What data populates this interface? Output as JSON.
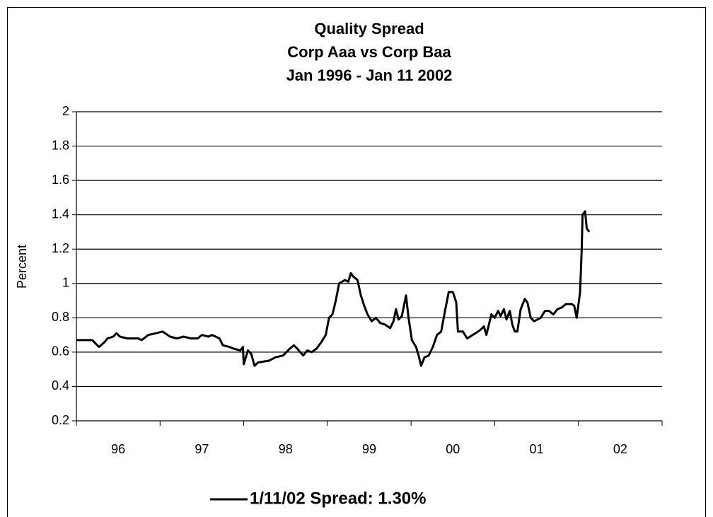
{
  "chart_data": {
    "type": "line",
    "title": [
      "Quality Spread",
      "Corp Aaa vs Corp Baa",
      "Jan 1996 - Jan 11 2002"
    ],
    "y_label": "Percent",
    "categories": [
      "96",
      "97",
      "98",
      "99",
      "00",
      "01",
      "02"
    ],
    "xlim": [
      1996,
      2003
    ],
    "ylim": [
      0.2,
      2
    ],
    "yticks": [
      0.2,
      0.4,
      0.6,
      0.8,
      1,
      1.2,
      1.4,
      1.6,
      1.8,
      2
    ],
    "grid": true,
    "legend": "bottom",
    "legend_text_color": "#1c1c8c",
    "series": [
      {
        "name": "1/11/02 Spread: 1.30%",
        "color": "#000000",
        "x": [
          1996.0,
          1996.19,
          1996.23,
          1996.27,
          1996.34,
          1996.37,
          1996.44,
          1996.48,
          1996.52,
          1996.61,
          1996.74,
          1996.78,
          1996.86,
          1996.95,
          1997.03,
          1997.12,
          1997.2,
          1997.28,
          1997.37,
          1997.45,
          1997.5,
          1997.58,
          1997.62,
          1997.71,
          1997.75,
          1997.83,
          1997.88,
          1997.96,
          1997.99,
          1998.0,
          1998.05,
          1998.09,
          1998.13,
          1998.17,
          1998.3,
          1998.38,
          1998.47,
          1998.55,
          1998.6,
          1998.64,
          1998.71,
          1998.76,
          1998.81,
          1998.87,
          1998.93,
          1998.98,
          1999.02,
          1999.06,
          1999.1,
          1999.14,
          1999.21,
          1999.25,
          1999.28,
          1999.31,
          1999.36,
          1999.4,
          1999.44,
          1999.48,
          1999.53,
          1999.58,
          1999.63,
          1999.69,
          1999.75,
          1999.79,
          1999.82,
          1999.85,
          1999.89,
          1999.94,
          1999.97,
          2000.01,
          2000.06,
          2000.09,
          2000.12,
          2000.16,
          2000.21,
          2000.26,
          2000.31,
          2000.36,
          2000.41,
          2000.45,
          2000.5,
          2000.54,
          2000.56,
          2000.62,
          2000.67,
          2000.77,
          2000.83,
          2000.87,
          2000.9,
          2000.96,
          2001.0,
          2001.04,
          2001.07,
          2001.11,
          2001.14,
          2001.18,
          2001.21,
          2001.24,
          2001.27,
          2001.31,
          2001.36,
          2001.39,
          2001.43,
          2001.47,
          2001.51,
          2001.55,
          2001.6,
          2001.65,
          2001.7,
          2001.75,
          2001.8,
          2001.85,
          2001.92,
          2001.95,
          2001.98,
          2002.02,
          2002.04,
          2002.05,
          2002.08,
          2002.1,
          2002.13
        ],
        "values": [
          0.67,
          0.67,
          0.65,
          0.63,
          0.66,
          0.68,
          0.69,
          0.71,
          0.69,
          0.68,
          0.68,
          0.67,
          0.7,
          0.71,
          0.72,
          0.69,
          0.68,
          0.69,
          0.68,
          0.68,
          0.7,
          0.69,
          0.7,
          0.68,
          0.64,
          0.63,
          0.62,
          0.61,
          0.63,
          0.53,
          0.61,
          0.59,
          0.52,
          0.54,
          0.55,
          0.57,
          0.58,
          0.62,
          0.64,
          0.62,
          0.58,
          0.61,
          0.6,
          0.62,
          0.66,
          0.7,
          0.8,
          0.82,
          0.9,
          1.0,
          1.02,
          1.01,
          1.06,
          1.04,
          1.02,
          0.93,
          0.87,
          0.82,
          0.78,
          0.8,
          0.77,
          0.76,
          0.74,
          0.78,
          0.85,
          0.79,
          0.81,
          0.93,
          0.8,
          0.67,
          0.63,
          0.58,
          0.52,
          0.57,
          0.58,
          0.63,
          0.7,
          0.72,
          0.85,
          0.95,
          0.95,
          0.89,
          0.72,
          0.72,
          0.68,
          0.71,
          0.73,
          0.75,
          0.7,
          0.82,
          0.8,
          0.84,
          0.81,
          0.85,
          0.79,
          0.84,
          0.76,
          0.72,
          0.72,
          0.85,
          0.91,
          0.89,
          0.8,
          0.78,
          0.79,
          0.8,
          0.84,
          0.84,
          0.82,
          0.85,
          0.86,
          0.88,
          0.88,
          0.87,
          0.8,
          0.95,
          1.2,
          1.4,
          1.42,
          1.32,
          1.3
        ]
      }
    ]
  }
}
